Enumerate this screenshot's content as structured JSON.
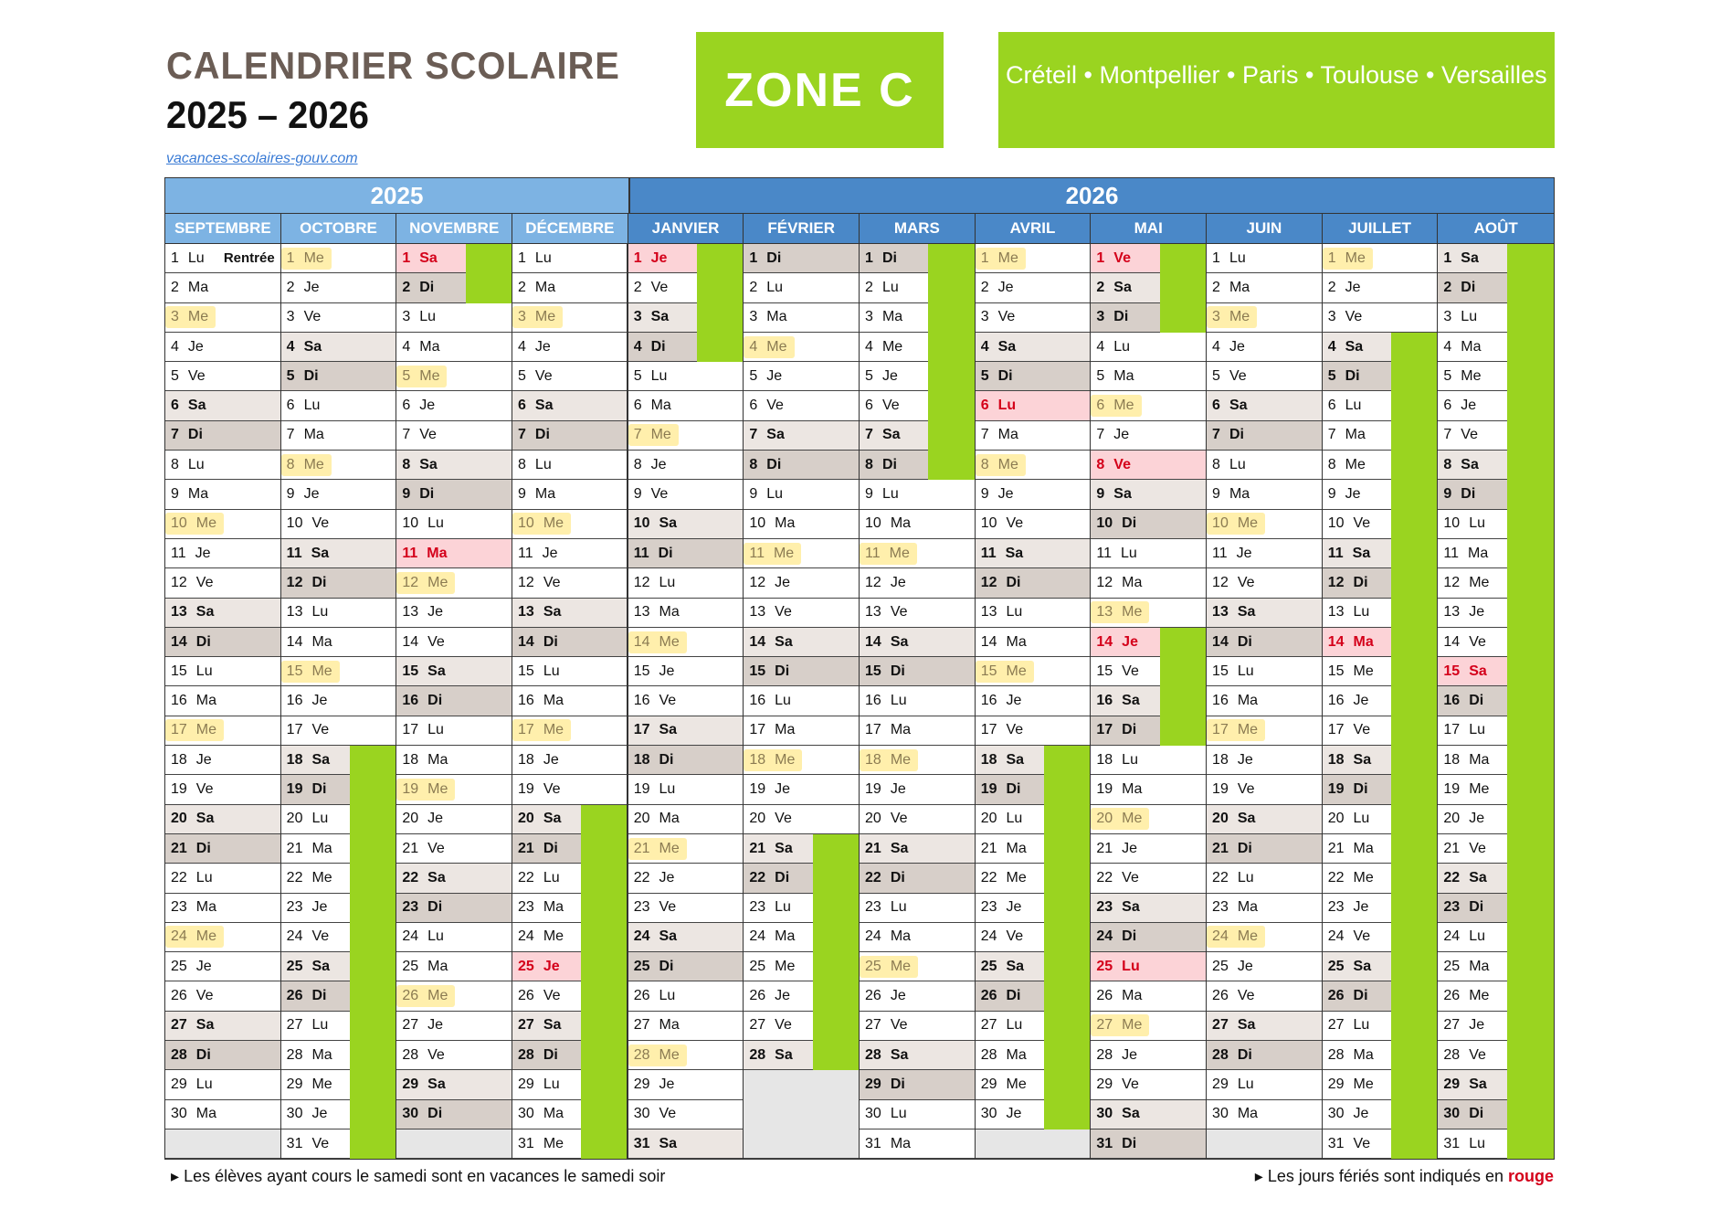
{
  "header": {
    "title": "CALENDRIER SCOLAIRE",
    "years": "2025 – 2026",
    "link": "vacances-scolaires-gouv.com",
    "zone": "ZONE C",
    "cities": "Créteil • Montpellier • Paris • Toulouse • Versailles"
  },
  "colors": {
    "green": "#9ad420",
    "header_2025": "#7db3e3",
    "header_2026": "#4a88c8",
    "saturday": "#ece6e2",
    "sunday": "#d7cfc9",
    "holiday_bg": "#fcd3d7",
    "holiday_text": "#d4001a",
    "wednesday_highlight": "#ffe05a"
  },
  "weekdays": [
    "Lu",
    "Ma",
    "Me",
    "Je",
    "Ve",
    "Sa",
    "Di"
  ],
  "years": [
    {
      "label": "2025",
      "months": [
        {
          "name": "SEPTEMBRE",
          "first_weekday": "Lu",
          "length": 30,
          "holidays": [],
          "vacations": [],
          "notes": {
            "1": "Rentrée"
          }
        },
        {
          "name": "OCTOBRE",
          "first_weekday": "Me",
          "length": 31,
          "holidays": [],
          "vacations": [
            [
              18,
              31
            ]
          ]
        },
        {
          "name": "NOVEMBRE",
          "first_weekday": "Sa",
          "length": 30,
          "holidays": [
            1,
            11
          ],
          "vacations": [
            [
              1,
              2
            ]
          ]
        },
        {
          "name": "DÉCEMBRE",
          "first_weekday": "Lu",
          "length": 31,
          "holidays": [
            25
          ],
          "vacations": [
            [
              20,
              31
            ]
          ]
        }
      ]
    },
    {
      "label": "2026",
      "months": [
        {
          "name": "JANVIER",
          "first_weekday": "Je",
          "length": 31,
          "holidays": [
            1
          ],
          "vacations": [
            [
              1,
              4
            ]
          ]
        },
        {
          "name": "FÉVRIER",
          "first_weekday": "Di",
          "length": 28,
          "holidays": [],
          "vacations": [
            [
              21,
              28
            ]
          ]
        },
        {
          "name": "MARS",
          "first_weekday": "Di",
          "length": 31,
          "holidays": [],
          "vacations": [
            [
              1,
              8
            ]
          ]
        },
        {
          "name": "AVRIL",
          "first_weekday": "Me",
          "length": 30,
          "holidays": [
            6
          ],
          "vacations": [
            [
              18,
              30
            ]
          ]
        },
        {
          "name": "MAI",
          "first_weekday": "Ve",
          "length": 31,
          "holidays": [
            1,
            8,
            14,
            25
          ],
          "vacations": [
            [
              1,
              3
            ],
            [
              14,
              17
            ]
          ]
        },
        {
          "name": "JUIN",
          "first_weekday": "Lu",
          "length": 30,
          "holidays": [],
          "vacations": []
        },
        {
          "name": "JUILLET",
          "first_weekday": "Me",
          "length": 31,
          "holidays": [
            14
          ],
          "vacations": [
            [
              4,
              31
            ]
          ]
        },
        {
          "name": "AOÛT",
          "first_weekday": "Sa",
          "length": 31,
          "holidays": [
            15
          ],
          "vacations": [
            [
              1,
              31
            ]
          ]
        }
      ]
    }
  ],
  "footer": {
    "left": "Les élèves ayant cours le samedi sont en vacances le samedi soir",
    "right": "Les jours fériés sont indiqués en ",
    "right_emph": "rouge",
    "bullet": "▸"
  }
}
